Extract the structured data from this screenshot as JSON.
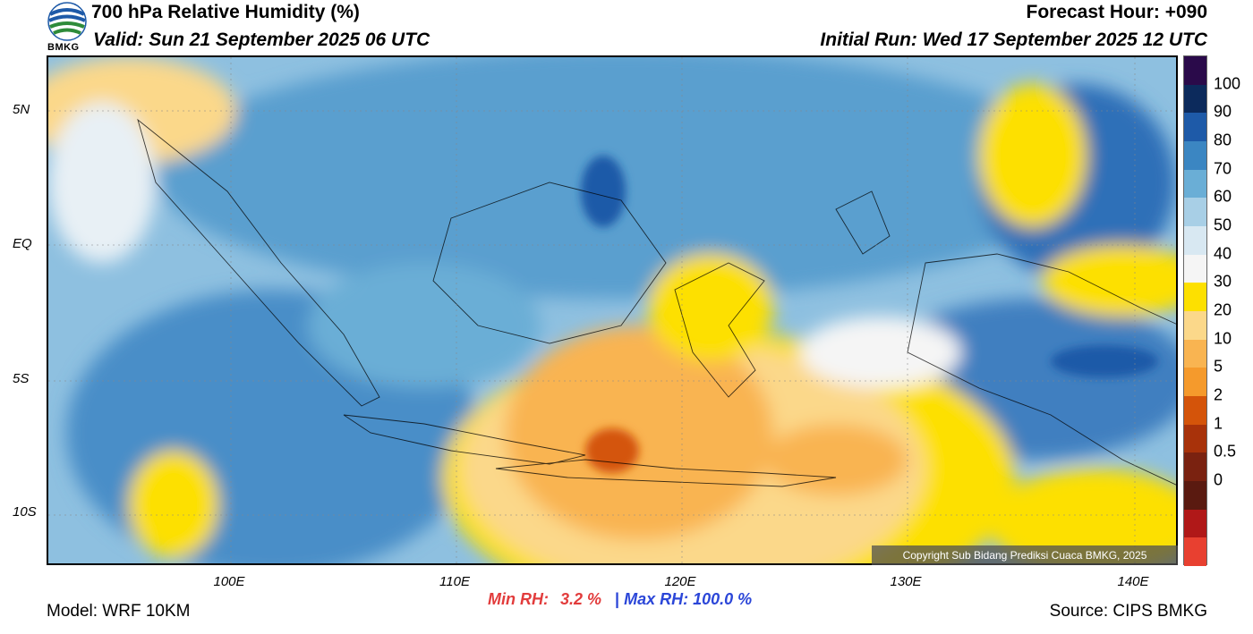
{
  "header": {
    "title": "700 hPa Relative Humidity (%)",
    "valid": "Valid: Sun 21 September 2025 06 UTC",
    "forecast_hour": "Forecast Hour: +090",
    "initial_run": "Initial Run: Wed 17 September 2025 12 UTC",
    "logo_text": "BMKG"
  },
  "map": {
    "lat_labels": [
      "5N",
      "EQ",
      "5S",
      "10S"
    ],
    "lon_labels": [
      "100E",
      "110E",
      "120E",
      "130E",
      "140E"
    ],
    "copyright": "Copyright Sub Bidang Prediksi Cuaca BMKG, 2025"
  },
  "colorbar": {
    "labels": [
      "100",
      "90",
      "80",
      "70",
      "60",
      "50",
      "40",
      "30",
      "20",
      "10",
      "5",
      "2",
      "1",
      "0.5",
      "0"
    ],
    "colors": [
      "#2a0a4a",
      "#0c2a5c",
      "#1e5aa8",
      "#3b86c2",
      "#6aaed6",
      "#a8cfe6",
      "#d8e8f2",
      "#f5f5f5",
      "#fde000",
      "#fbd88a",
      "#f9b451",
      "#f59a2c",
      "#d4540a",
      "#a8320a",
      "#7a2210",
      "#5a1a10",
      "#b01818",
      "#e84030"
    ]
  },
  "stats": {
    "min_label": "Min RH:",
    "min_value": "3.2 %",
    "separator": "|",
    "max_label": "Max RH:",
    "max_value": "100.0 %"
  },
  "footer": {
    "model": "Model: WRF 10KM",
    "source": "Source: CIPS BMKG"
  }
}
